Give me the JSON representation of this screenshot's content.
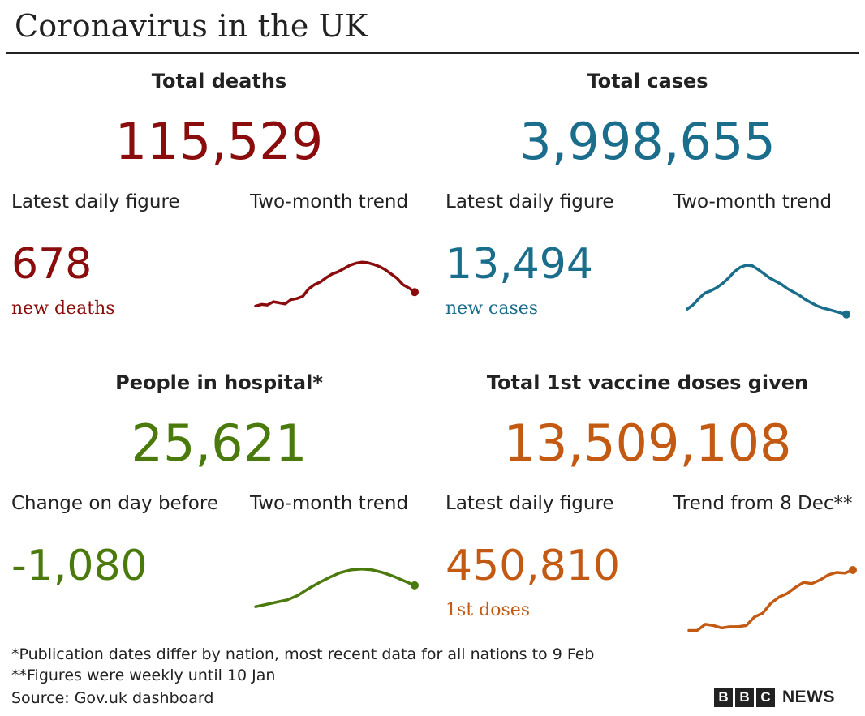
{
  "title": "Coronavirus in the UK",
  "colors": {
    "deaths": "#8a0c0c",
    "cases": "#1b6d8c",
    "hospital": "#4a7a0c",
    "vaccine": "#c35a13"
  },
  "panels": {
    "deaths": {
      "heading": "Total deaths",
      "total": "115,529",
      "label_left": "Latest daily figure",
      "label_right": "Two-month trend",
      "daily": "678",
      "unit": "new deaths"
    },
    "cases": {
      "heading": "Total cases",
      "total": "3,998,655",
      "label_left": "Latest daily figure",
      "label_right": "Two-month trend",
      "daily": "13,494",
      "unit": "new cases"
    },
    "hospital": {
      "heading": "People in hospital*",
      "total": "25,621",
      "label_left": "Change on day before",
      "label_right": "Two-month trend",
      "daily": "-1,080",
      "unit": ""
    },
    "vaccine": {
      "heading": "Total 1st vaccine doses given",
      "total": "13,509,108",
      "label_left": "Latest daily figure",
      "label_right": "Trend from 8 Dec**",
      "daily": "450,810",
      "unit": "1st doses"
    }
  },
  "footer": {
    "note1": "*Publication dates differ by nation, most recent data for all nations to 9 Feb",
    "note2": "**Figures were weekly until 10 Jan",
    "source": "Source: Gov.uk dashboard"
  },
  "brand": {
    "letters": [
      "B",
      "B",
      "C"
    ],
    "news": "NEWS"
  },
  "chart_data": [
    {
      "type": "line",
      "name": "deaths-trend",
      "values": [
        0.1,
        0.13,
        0.12,
        0.18,
        0.16,
        0.14,
        0.22,
        0.24,
        0.28,
        0.42,
        0.5,
        0.55,
        0.63,
        0.7,
        0.74,
        0.8,
        0.86,
        0.9,
        0.92,
        0.91,
        0.88,
        0.84,
        0.78,
        0.7,
        0.62,
        0.5,
        0.44,
        0.36
      ]
    },
    {
      "type": "line",
      "name": "cases-trend",
      "values": [
        0.12,
        0.2,
        0.32,
        0.42,
        0.46,
        0.52,
        0.6,
        0.7,
        0.82,
        0.9,
        0.94,
        0.93,
        0.86,
        0.78,
        0.7,
        0.64,
        0.58,
        0.5,
        0.44,
        0.38,
        0.3,
        0.24,
        0.18,
        0.14,
        0.11,
        0.08,
        0.05,
        0.02
      ]
    },
    {
      "type": "line",
      "name": "hospital-trend",
      "values": [
        0.05,
        0.1,
        0.15,
        0.2,
        0.3,
        0.45,
        0.58,
        0.7,
        0.8,
        0.86,
        0.88,
        0.86,
        0.8,
        0.72,
        0.62,
        0.52
      ]
    },
    {
      "type": "line",
      "name": "vaccine-trend",
      "values": [
        0.02,
        0.02,
        0.12,
        0.1,
        0.06,
        0.08,
        0.08,
        0.1,
        0.24,
        0.3,
        0.46,
        0.56,
        0.62,
        0.72,
        0.8,
        0.78,
        0.84,
        0.92,
        0.96,
        0.95,
        1.0
      ]
    }
  ]
}
